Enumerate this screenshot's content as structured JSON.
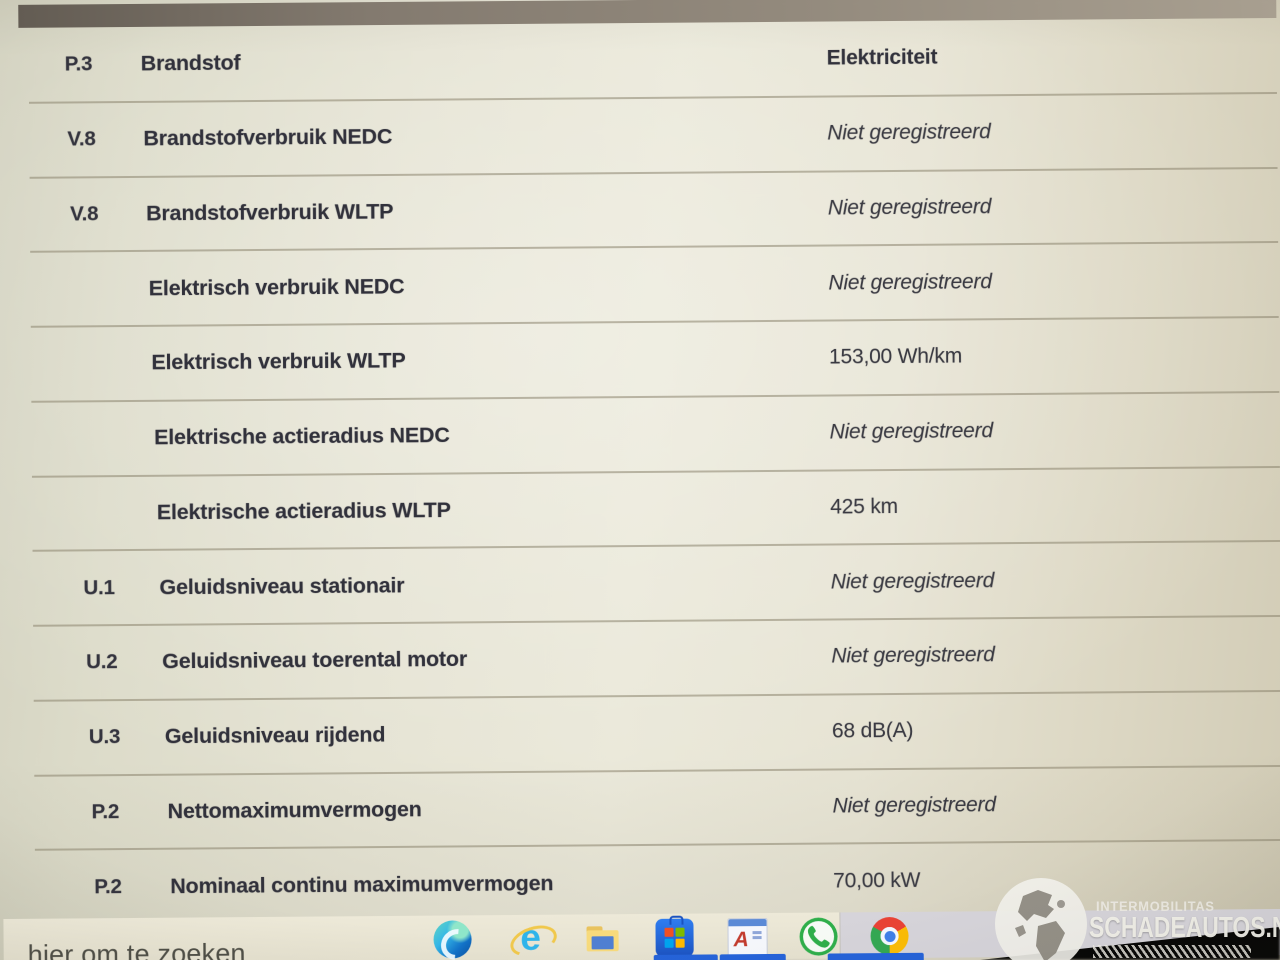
{
  "table": {
    "rows": [
      {
        "code": "P.3",
        "label": "Brandstof",
        "value": "Elektriciteit",
        "italic": false,
        "header": true
      },
      {
        "code": "V.8",
        "label": "Brandstofverbruik NEDC",
        "value": "Niet geregistreerd",
        "italic": true
      },
      {
        "code": "V.8",
        "label": "Brandstofverbruik WLTP",
        "value": "Niet geregistreerd",
        "italic": true
      },
      {
        "code": "",
        "label": "Elektrisch verbruik NEDC",
        "value": "Niet geregistreerd",
        "italic": true
      },
      {
        "code": "",
        "label": "Elektrisch verbruik WLTP",
        "value": "153,00 Wh/km",
        "italic": false
      },
      {
        "code": "",
        "label": "Elektrische actieradius NEDC",
        "value": "Niet geregistreerd",
        "italic": true
      },
      {
        "code": "",
        "label": "Elektrische actieradius WLTP",
        "value": "425 km",
        "italic": false
      },
      {
        "code": "U.1",
        "label": "Geluidsniveau stationair",
        "value": "Niet geregistreerd",
        "italic": true
      },
      {
        "code": "U.2",
        "label": "Geluidsniveau toerental motor",
        "value": "Niet geregistreerd",
        "italic": true
      },
      {
        "code": "U.3",
        "label": "Geluidsniveau rijdend",
        "value": "68 dB(A)",
        "italic": false
      },
      {
        "code": "P.2",
        "label": "Nettomaximumvermogen",
        "value": "Niet geregistreerd",
        "italic": true
      },
      {
        "code": "P.2",
        "label": "Nominaal continu maximumvermogen",
        "value": "70,00 kW",
        "italic": false
      }
    ]
  },
  "taskbar": {
    "search_text": "hier om te zoeken",
    "icons": [
      "edge-icon",
      "internet-explorer-icon",
      "file-explorer-icon",
      "microsoft-store-icon",
      "document-a-icon",
      "whatsapp-icon",
      "chrome-icon"
    ]
  },
  "watermark": {
    "brand_small": "INTERMOBILITAS",
    "brand_large": "SCHADEAUTOS.NL"
  },
  "colors": {
    "row_text": "#32323c",
    "divider": "#8a846e",
    "topbar": "#8a8177",
    "taskbar_bg": "#d6d4da",
    "search_bg": "#e9e5d4",
    "active_indicator": "#2563d9"
  }
}
